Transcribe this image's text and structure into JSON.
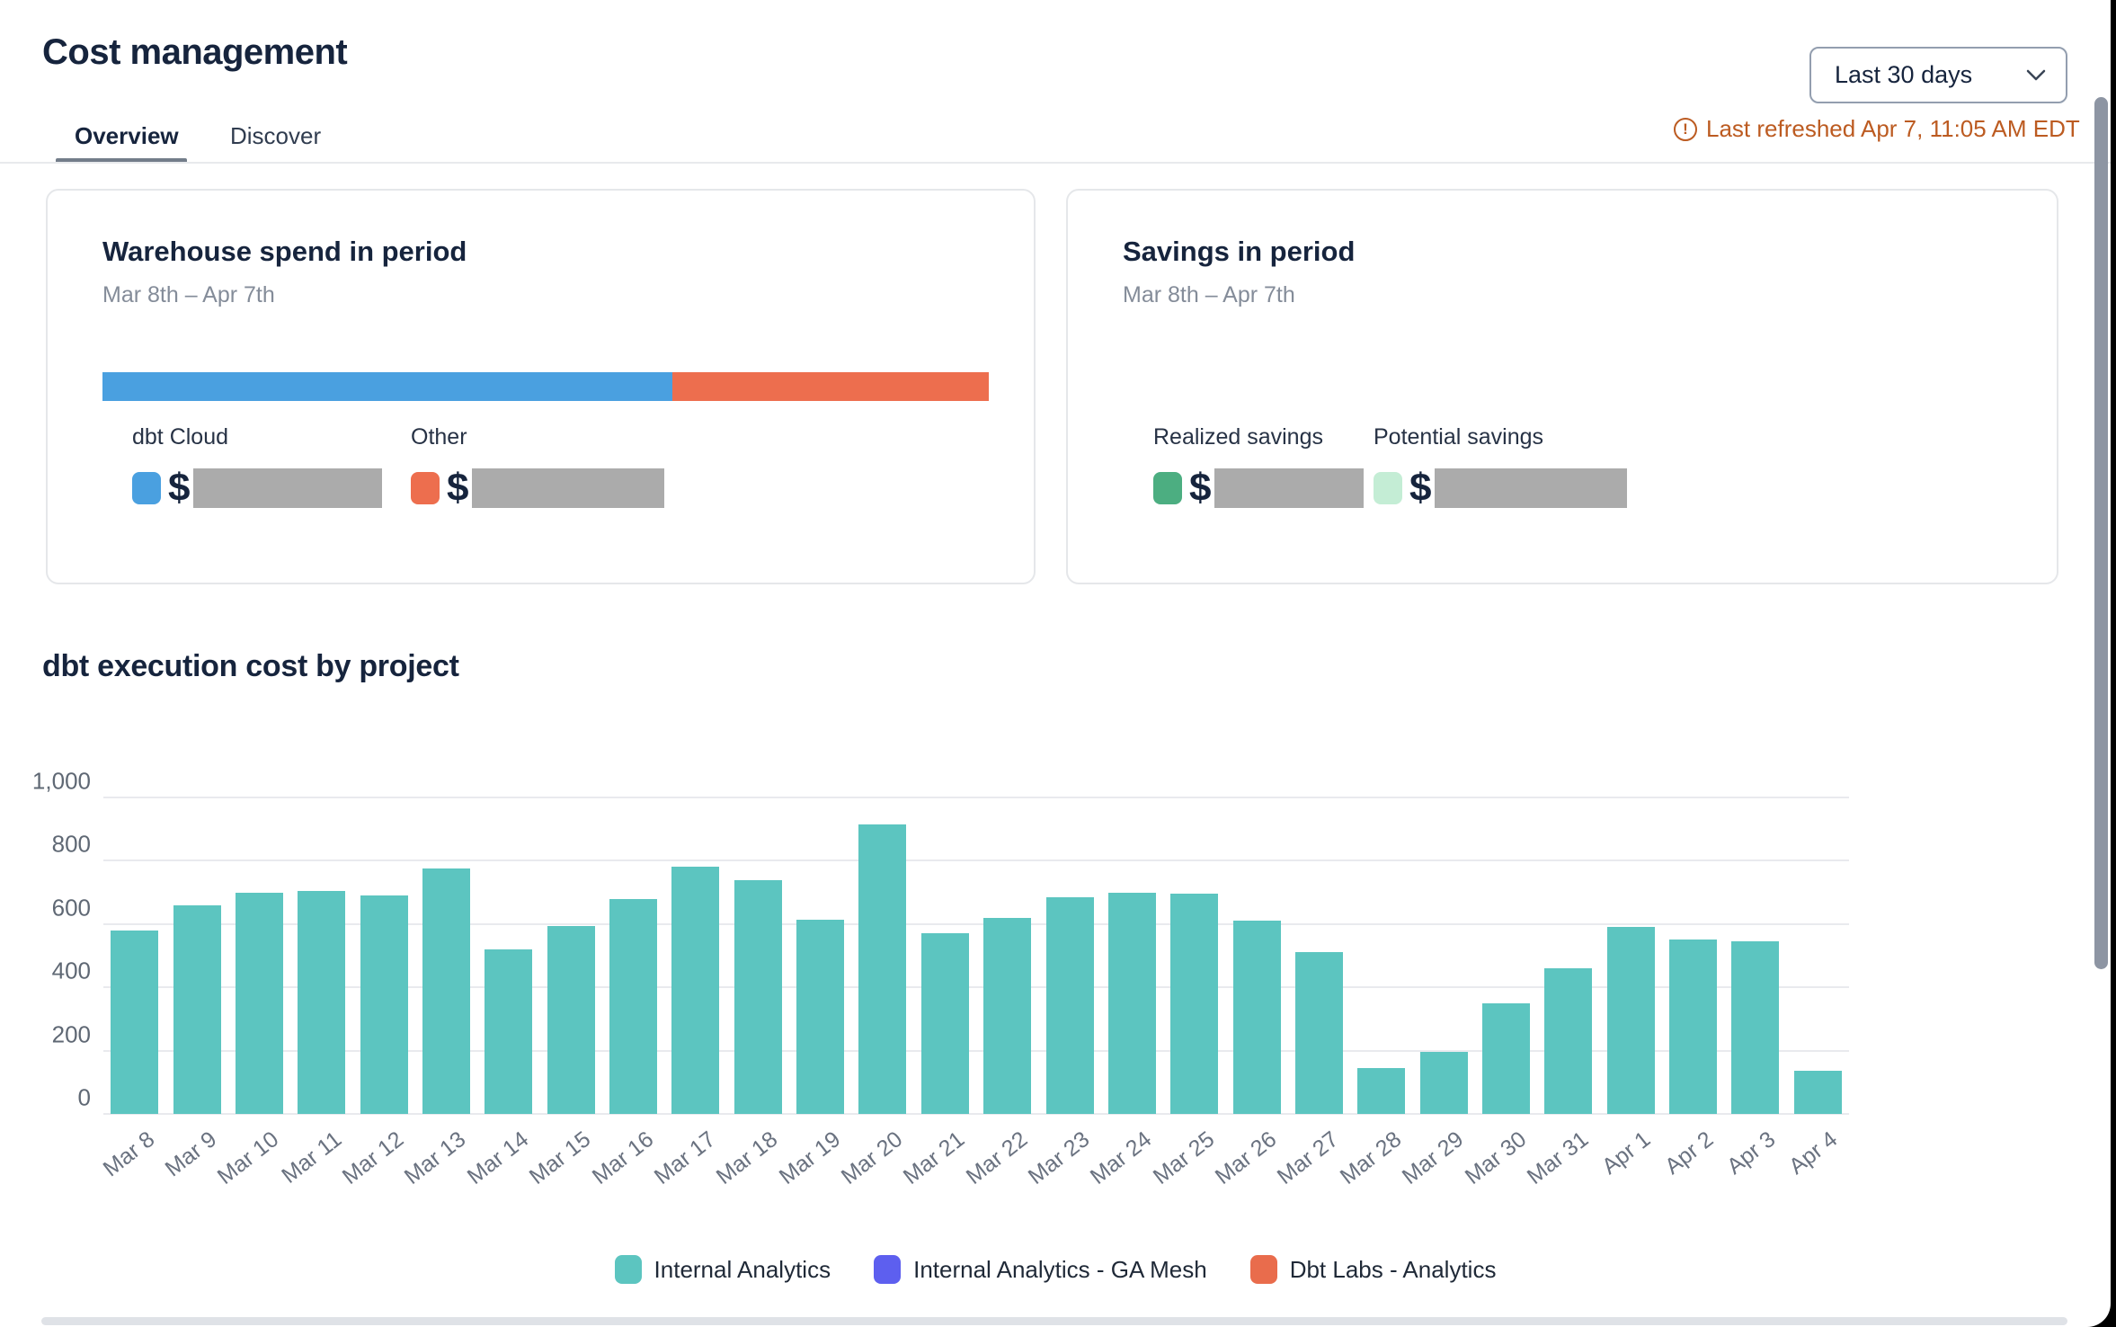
{
  "header": {
    "title": "Cost management",
    "tabs": [
      {
        "label": "Overview",
        "active": true
      },
      {
        "label": "Discover",
        "active": false
      }
    ],
    "date_range": {
      "value": "Last 30 days"
    },
    "last_refreshed": "Last refreshed Apr 7, 11:05 AM EDT"
  },
  "colors": {
    "dbt_cloud_blue": "#4AA0E0",
    "other_orange": "#ED6E4E",
    "realized_green": "#4CAE81",
    "potential_mint": "#C4EDD5",
    "internal_analytics_teal": "#5CC5C0",
    "ga_mesh_purple": "#5D5FEF",
    "dbt_labs_orange": "#E96C4C",
    "redacted_gray": "#ABABAB",
    "refresh_warning_orange": "#BC5B21"
  },
  "spend_card": {
    "title": "Warehouse spend in period",
    "subtitle": "Mar 8th – Apr 7th",
    "stacked_bar": {
      "segments": [
        {
          "name": "dbt Cloud",
          "color": "#4AA0E0",
          "pct": 64.3
        },
        {
          "name": "Other",
          "color": "#ED6E4E",
          "pct": 35.7
        }
      ]
    },
    "legend": [
      {
        "label": "dbt Cloud",
        "currency": "$",
        "color": "#4AA0E0",
        "value": "redacted"
      },
      {
        "label": "Other",
        "currency": "$",
        "color": "#ED6E4E",
        "value": "redacted"
      }
    ]
  },
  "savings_card": {
    "title": "Savings in period",
    "subtitle": "Mar 8th – Apr 7th",
    "legend": [
      {
        "label": "Realized savings",
        "currency": "$",
        "color": "#4CAE81",
        "value": "redacted"
      },
      {
        "label": "Potential savings",
        "currency": "$",
        "color": "#C4EDD5",
        "value": "redacted"
      }
    ]
  },
  "chart_data": {
    "type": "bar",
    "title": "dbt execution cost by project",
    "categories": [
      "Mar 8",
      "Mar 9",
      "Mar 10",
      "Mar 11",
      "Mar 12",
      "Mar 13",
      "Mar 14",
      "Mar 15",
      "Mar 16",
      "Mar 17",
      "Mar 18",
      "Mar 19",
      "Mar 20",
      "Mar 21",
      "Mar 22",
      "Mar 23",
      "Mar 24",
      "Mar 25",
      "Mar 26",
      "Mar 27",
      "Mar 28",
      "Mar 29",
      "Mar 30",
      "Mar 31",
      "Apr 1",
      "Apr 2",
      "Apr 3",
      "Apr 4"
    ],
    "series": [
      {
        "name": "Internal Analytics",
        "color": "#5CC5C0",
        "values": [
          580,
          660,
          700,
          705,
          690,
          775,
          520,
          595,
          680,
          780,
          740,
          615,
          915,
          570,
          620,
          685,
          700,
          695,
          610,
          510,
          145,
          195,
          350,
          460,
          590,
          550,
          545,
          135
        ]
      },
      {
        "name": "Internal Analytics - GA Mesh",
        "color": "#5D5FEF",
        "values": []
      },
      {
        "name": "Dbt Labs - Analytics",
        "color": "#E96C4C",
        "values": []
      }
    ],
    "xlabel": "",
    "ylabel": "",
    "ylim": [
      0,
      1000
    ],
    "yticks": [
      {
        "value": 0,
        "label": "0"
      },
      {
        "value": 200,
        "label": "200"
      },
      {
        "value": 400,
        "label": "400"
      },
      {
        "value": 600,
        "label": "600"
      },
      {
        "value": 800,
        "label": "800"
      },
      {
        "value": 1000,
        "label": "1,000"
      }
    ],
    "grid": true,
    "legend_position": "bottom",
    "legend": [
      {
        "label": "Internal Analytics",
        "color": "#5CC5C0"
      },
      {
        "label": "Internal Analytics - GA Mesh",
        "color": "#5D5FEF"
      },
      {
        "label": "Dbt Labs - Analytics",
        "color": "#E96C4C"
      }
    ]
  }
}
